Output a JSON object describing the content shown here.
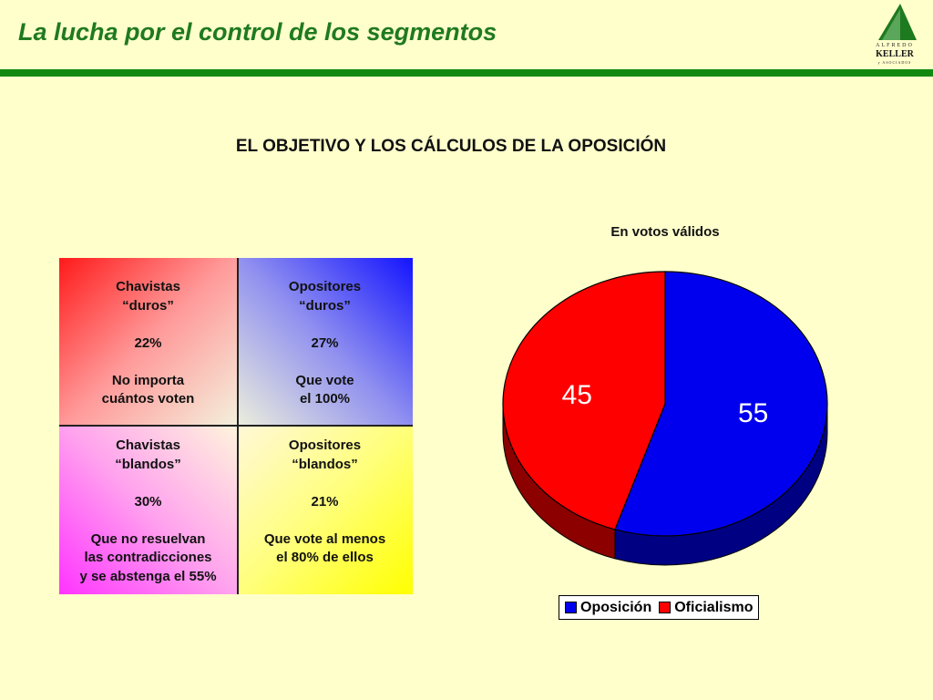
{
  "header": {
    "title": "La lucha por el control de los segmentos",
    "logo": {
      "line1": "ALFREDO",
      "line2": "KELLER",
      "line3": "y ASOCIADOS"
    }
  },
  "subtitle": "EL OBJETIVO Y LOS CÁLCULOS DE LA OPOSICIÓN",
  "quadrants": [
    {
      "line1": "Chavistas",
      "line2": "“duros”",
      "percent": "22%",
      "note1": "No importa",
      "note2": "cuántos voten",
      "note3": ""
    },
    {
      "line1": "Opositores",
      "line2": "“duros”",
      "percent": "27%",
      "note1": "Que vote",
      "note2": "el 100%",
      "note3": ""
    },
    {
      "line1": "Chavistas",
      "line2": "“blandos”",
      "percent": "30%",
      "note1": "Que no resuelvan",
      "note2": "las contradicciones",
      "note3": "y se abstenga el 55%"
    },
    {
      "line1": "Opositores",
      "line2": "“blandos”",
      "percent": "21%",
      "note1": "Que vote al menos",
      "note2": "el 80% de ellos",
      "note3": ""
    }
  ],
  "colors": {
    "accent": "#128a12",
    "oposicion": "#0000ee",
    "oficialismo": "#ff0000"
  },
  "chart_data": {
    "type": "pie",
    "title": "En votos válidos",
    "categories": [
      "Oposición",
      "Oficialismo"
    ],
    "values": [
      55,
      45
    ],
    "labels": [
      "55",
      "45"
    ],
    "colors": [
      "#0000ee",
      "#ff0000"
    ],
    "legend": "bottom"
  }
}
